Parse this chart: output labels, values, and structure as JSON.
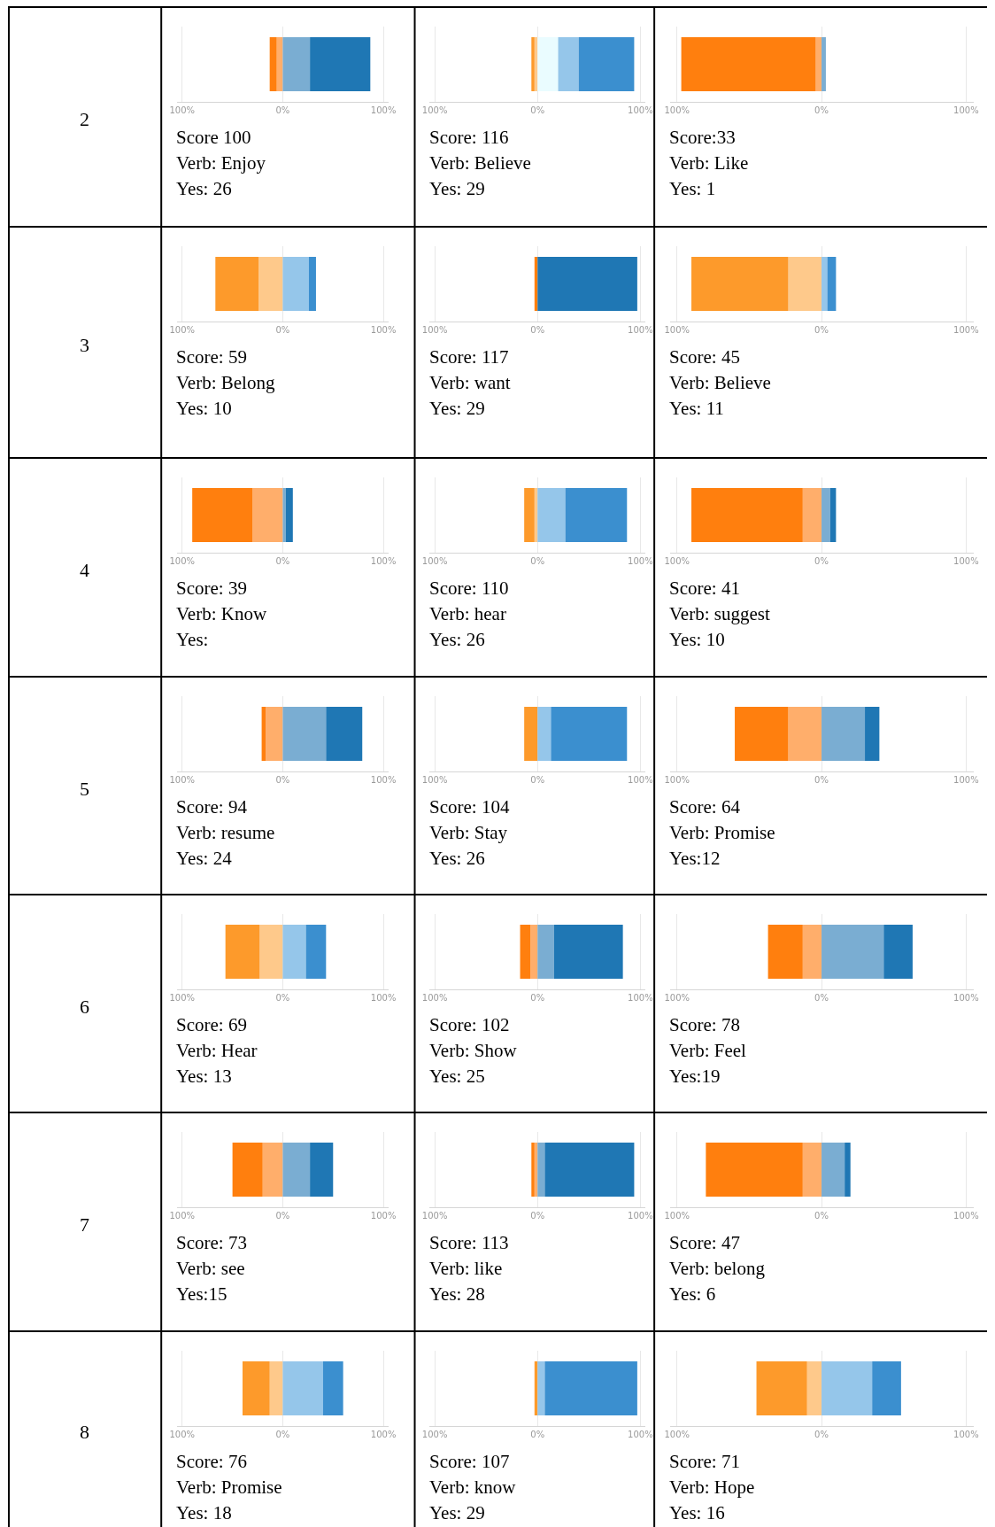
{
  "chart_data": [
    {
      "type": "bar",
      "orientation": "horizontal",
      "stacked": true,
      "categories": [
        null
      ],
      "xlim": [
        -105,
        105
      ],
      "xticks": [
        {
          "value": -100,
          "label": "100%"
        },
        {
          "value": 0,
          "label": "0%"
        },
        {
          "value": 100,
          "label": "100%"
        }
      ],
      "grid": "x",
      "ylabel": "2",
      "annotations": [
        "Score 100",
        "Verb: Enjoy",
        "Yes: 26"
      ],
      "series": [
        {
          "color": "#ffae6b",
          "values": [
            -6
          ]
        },
        {
          "color": "#ff7f0e",
          "values": [
            -7
          ]
        },
        {
          "color": "#7aadd2",
          "values": [
            27
          ]
        },
        {
          "color": "#1f77b4",
          "values": [
            60
          ]
        }
      ]
    },
    {
      "type": "bar",
      "orientation": "horizontal",
      "stacked": true,
      "categories": [
        null
      ],
      "xlim": [
        -105,
        105
      ],
      "xticks": [
        {
          "value": -100,
          "label": "100%"
        },
        {
          "value": 0,
          "label": "0%"
        },
        {
          "value": 100,
          "label": "100%"
        }
      ],
      "grid": "x",
      "annotations": [
        "Score: 116",
        "Verb: Believe",
        "Yes: 29"
      ],
      "series": [
        {
          "color": "#fec98b",
          "values": [
            -3
          ]
        },
        {
          "color": "#fd9a2b",
          "values": [
            -3
          ]
        },
        {
          "color": "#eafcff",
          "values": [
            20
          ]
        },
        {
          "color": "#95c6ea",
          "values": [
            20
          ]
        },
        {
          "color": "#3b8fcf",
          "values": [
            54
          ]
        }
      ]
    },
    {
      "type": "bar",
      "orientation": "horizontal",
      "stacked": true,
      "categories": [
        null
      ],
      "xlim": [
        -105,
        105
      ],
      "xticks": [
        {
          "value": -100,
          "label": "100%"
        },
        {
          "value": 0,
          "label": "0%"
        },
        {
          "value": 100,
          "label": "100%"
        }
      ],
      "grid": "x",
      "annotations": [
        "Score:33",
        "Verb: Like",
        "Yes: 1"
      ],
      "series": [
        {
          "color": "#ffae6b",
          "values": [
            -4
          ]
        },
        {
          "color": "#ff7f0e",
          "values": [
            -93
          ]
        },
        {
          "color": "#7aadd2",
          "values": [
            3
          ]
        }
      ]
    },
    {
      "type": "bar",
      "orientation": "horizontal",
      "stacked": true,
      "categories": [
        null
      ],
      "xlim": [
        -105,
        105
      ],
      "xticks": [
        {
          "value": -100,
          "label": "100%"
        },
        {
          "value": 0,
          "label": "0%"
        },
        {
          "value": 100,
          "label": "100%"
        }
      ],
      "grid": "x",
      "ylabel": "3",
      "annotations": [
        "Score: 59",
        "Verb: Belong",
        "Yes: 10"
      ],
      "series": [
        {
          "color": "#fec98b",
          "values": [
            -24
          ]
        },
        {
          "color": "#fd9a2b",
          "values": [
            -43
          ]
        },
        {
          "color": "#95c6ea",
          "values": [
            26
          ]
        },
        {
          "color": "#3b8fcf",
          "values": [
            7
          ]
        }
      ]
    },
    {
      "type": "bar",
      "orientation": "horizontal",
      "stacked": true,
      "categories": [
        null
      ],
      "xlim": [
        -105,
        105
      ],
      "xticks": [
        {
          "value": -100,
          "label": "100%"
        },
        {
          "value": 0,
          "label": "0%"
        },
        {
          "value": 100,
          "label": "100%"
        }
      ],
      "grid": "x",
      "annotations": [
        "Score: 117",
        "Verb: want",
        "Yes: 29"
      ],
      "series": [
        {
          "color": "#ff7f0e",
          "values": [
            -3
          ]
        },
        {
          "color": "#1f77b4",
          "values": [
            97
          ]
        }
      ]
    },
    {
      "type": "bar",
      "orientation": "horizontal",
      "stacked": true,
      "categories": [
        null
      ],
      "xlim": [
        -105,
        105
      ],
      "xticks": [
        {
          "value": -100,
          "label": "100%"
        },
        {
          "value": 0,
          "label": "0%"
        },
        {
          "value": 100,
          "label": "100%"
        }
      ],
      "grid": "x",
      "annotations": [
        "Score: 45",
        "Verb: Believe",
        "Yes: 11"
      ],
      "series": [
        {
          "color": "#fec98b",
          "values": [
            -23
          ]
        },
        {
          "color": "#fd9a2b",
          "values": [
            -67
          ]
        },
        {
          "color": "#95c6ea",
          "values": [
            4
          ]
        },
        {
          "color": "#3b8fcf",
          "values": [
            6
          ]
        }
      ]
    },
    {
      "type": "bar",
      "orientation": "horizontal",
      "stacked": true,
      "categories": [
        null
      ],
      "xlim": [
        -105,
        105
      ],
      "xticks": [
        {
          "value": -100,
          "label": "100%"
        },
        {
          "value": 0,
          "label": "0%"
        },
        {
          "value": 100,
          "label": "100%"
        }
      ],
      "grid": "x",
      "ylabel": "4",
      "annotations": [
        "Score: 39",
        "Verb: Know",
        "Yes:"
      ],
      "series": [
        {
          "color": "#ffae6b",
          "values": [
            -30
          ]
        },
        {
          "color": "#ff7f0e",
          "values": [
            -60
          ]
        },
        {
          "color": "#7aadd2",
          "values": [
            3
          ]
        },
        {
          "color": "#1f77b4",
          "values": [
            7
          ]
        }
      ]
    },
    {
      "type": "bar",
      "orientation": "horizontal",
      "stacked": true,
      "categories": [
        null
      ],
      "xlim": [
        -105,
        105
      ],
      "xticks": [
        {
          "value": -100,
          "label": "100%"
        },
        {
          "value": 0,
          "label": "0%"
        },
        {
          "value": 100,
          "label": "100%"
        }
      ],
      "grid": "x",
      "annotations": [
        "Score: 110",
        "Verb: hear",
        "Yes: 26"
      ],
      "series": [
        {
          "color": "#fec98b",
          "values": [
            -3
          ]
        },
        {
          "color": "#fd9a2b",
          "values": [
            -10
          ]
        },
        {
          "color": "#95c6ea",
          "values": [
            27
          ]
        },
        {
          "color": "#3b8fcf",
          "values": [
            60
          ]
        }
      ]
    },
    {
      "type": "bar",
      "orientation": "horizontal",
      "stacked": true,
      "categories": [
        null
      ],
      "xlim": [
        -105,
        105
      ],
      "xticks": [
        {
          "value": -100,
          "label": "100%"
        },
        {
          "value": 0,
          "label": "0%"
        },
        {
          "value": 100,
          "label": "100%"
        }
      ],
      "grid": "x",
      "annotations": [
        "Score: 41",
        "Verb: suggest",
        "Yes: 10"
      ],
      "series": [
        {
          "color": "#ffae6b",
          "values": [
            -13
          ]
        },
        {
          "color": "#ff7f0e",
          "values": [
            -77
          ]
        },
        {
          "color": "#7aadd2",
          "values": [
            6
          ]
        },
        {
          "color": "#1f77b4",
          "values": [
            4
          ]
        }
      ]
    },
    {
      "type": "bar",
      "orientation": "horizontal",
      "stacked": true,
      "categories": [
        null
      ],
      "xlim": [
        -105,
        105
      ],
      "xticks": [
        {
          "value": -100,
          "label": "100%"
        },
        {
          "value": 0,
          "label": "0%"
        },
        {
          "value": 100,
          "label": "100%"
        }
      ],
      "grid": "x",
      "ylabel": "5",
      "annotations": [
        "Score: 94",
        "Verb: resume",
        "Yes: 24"
      ],
      "series": [
        {
          "color": "#ffae6b",
          "values": [
            -17
          ]
        },
        {
          "color": "#ff7f0e",
          "values": [
            -4
          ]
        },
        {
          "color": "#7aadd2",
          "values": [
            43
          ]
        },
        {
          "color": "#1f77b4",
          "values": [
            36
          ]
        }
      ]
    },
    {
      "type": "bar",
      "orientation": "horizontal",
      "stacked": true,
      "categories": [
        null
      ],
      "xlim": [
        -105,
        105
      ],
      "xticks": [
        {
          "value": -100,
          "label": "100%"
        },
        {
          "value": 0,
          "label": "0%"
        },
        {
          "value": 100,
          "label": "100%"
        }
      ],
      "grid": "x",
      "annotations": [
        "Score: 104",
        "Verb: Stay",
        "Yes: 26"
      ],
      "series": [
        {
          "color": "#fd9a2b",
          "values": [
            -13
          ]
        },
        {
          "color": "#95c6ea",
          "values": [
            13
          ]
        },
        {
          "color": "#3b8fcf",
          "values": [
            74
          ]
        }
      ]
    },
    {
      "type": "bar",
      "orientation": "horizontal",
      "stacked": true,
      "categories": [
        null
      ],
      "xlim": [
        -105,
        105
      ],
      "xticks": [
        {
          "value": -100,
          "label": "100%"
        },
        {
          "value": 0,
          "label": "0%"
        },
        {
          "value": 100,
          "label": "100%"
        }
      ],
      "grid": "x",
      "annotations": [
        "Score: 64",
        "Verb: Promise",
        "Yes:12"
      ],
      "series": [
        {
          "color": "#ffae6b",
          "values": [
            -23
          ]
        },
        {
          "color": "#ff7f0e",
          "values": [
            -37
          ]
        },
        {
          "color": "#7aadd2",
          "values": [
            30
          ]
        },
        {
          "color": "#1f77b4",
          "values": [
            10
          ]
        }
      ]
    },
    {
      "type": "bar",
      "orientation": "horizontal",
      "stacked": true,
      "categories": [
        null
      ],
      "xlim": [
        -105,
        105
      ],
      "xticks": [
        {
          "value": -100,
          "label": "100%"
        },
        {
          "value": 0,
          "label": "0%"
        },
        {
          "value": 100,
          "label": "100%"
        }
      ],
      "grid": "x",
      "ylabel": "6",
      "annotations": [
        "Score: 69",
        "Verb: Hear",
        "Yes: 13"
      ],
      "series": [
        {
          "color": "#fec98b",
          "values": [
            -23
          ]
        },
        {
          "color": "#fd9a2b",
          "values": [
            -34
          ]
        },
        {
          "color": "#95c6ea",
          "values": [
            23
          ]
        },
        {
          "color": "#3b8fcf",
          "values": [
            20
          ]
        }
      ]
    },
    {
      "type": "bar",
      "orientation": "horizontal",
      "stacked": true,
      "categories": [
        null
      ],
      "xlim": [
        -105,
        105
      ],
      "xticks": [
        {
          "value": -100,
          "label": "100%"
        },
        {
          "value": 0,
          "label": "0%"
        },
        {
          "value": 100,
          "label": "100%"
        }
      ],
      "grid": "x",
      "annotations": [
        "Score: 102",
        "Verb: Show",
        "Yes: 25"
      ],
      "series": [
        {
          "color": "#ffae6b",
          "values": [
            -7
          ]
        },
        {
          "color": "#ff7f0e",
          "values": [
            -10
          ]
        },
        {
          "color": "#7aadd2",
          "values": [
            16
          ]
        },
        {
          "color": "#1f77b4",
          "values": [
            67
          ]
        }
      ]
    },
    {
      "type": "bar",
      "orientation": "horizontal",
      "stacked": true,
      "categories": [
        null
      ],
      "xlim": [
        -105,
        105
      ],
      "xticks": [
        {
          "value": -100,
          "label": "100%"
        },
        {
          "value": 0,
          "label": "0%"
        },
        {
          "value": 100,
          "label": "100%"
        }
      ],
      "grid": "x",
      "annotations": [
        "Score: 78",
        "Verb: Feel",
        "Yes:19"
      ],
      "series": [
        {
          "color": "#ffae6b",
          "values": [
            -13
          ]
        },
        {
          "color": "#ff7f0e",
          "values": [
            -24
          ]
        },
        {
          "color": "#7aadd2",
          "values": [
            43
          ]
        },
        {
          "color": "#1f77b4",
          "values": [
            20
          ]
        }
      ]
    },
    {
      "type": "bar",
      "orientation": "horizontal",
      "stacked": true,
      "categories": [
        null
      ],
      "xlim": [
        -105,
        105
      ],
      "xticks": [
        {
          "value": -100,
          "label": "100%"
        },
        {
          "value": 0,
          "label": "0%"
        },
        {
          "value": 100,
          "label": "100%"
        }
      ],
      "grid": "x",
      "ylabel": "7",
      "annotations": [
        "Score: 73",
        "Verb: see",
        "Yes:15"
      ],
      "series": [
        {
          "color": "#ffae6b",
          "values": [
            -20
          ]
        },
        {
          "color": "#ff7f0e",
          "values": [
            -30
          ]
        },
        {
          "color": "#7aadd2",
          "values": [
            27
          ]
        },
        {
          "color": "#1f77b4",
          "values": [
            23
          ]
        }
      ]
    },
    {
      "type": "bar",
      "orientation": "horizontal",
      "stacked": true,
      "categories": [
        null
      ],
      "xlim": [
        -105,
        105
      ],
      "xticks": [
        {
          "value": -100,
          "label": "100%"
        },
        {
          "value": 0,
          "label": "0%"
        },
        {
          "value": 100,
          "label": "100%"
        }
      ],
      "grid": "x",
      "annotations": [
        "Score: 113",
        "Verb: like",
        "Yes: 28"
      ],
      "series": [
        {
          "color": "#ffae6b",
          "values": [
            -3
          ]
        },
        {
          "color": "#ff7f0e",
          "values": [
            -3
          ]
        },
        {
          "color": "#7aadd2",
          "values": [
            7
          ]
        },
        {
          "color": "#1f77b4",
          "values": [
            87
          ]
        }
      ]
    },
    {
      "type": "bar",
      "orientation": "horizontal",
      "stacked": true,
      "categories": [
        null
      ],
      "xlim": [
        -105,
        105
      ],
      "xticks": [
        {
          "value": -100,
          "label": "100%"
        },
        {
          "value": 0,
          "label": "0%"
        },
        {
          "value": 100,
          "label": "100%"
        }
      ],
      "grid": "x",
      "annotations": [
        "Score: 47",
        "Verb: belong",
        "Yes: 6"
      ],
      "series": [
        {
          "color": "#ffae6b",
          "values": [
            -13
          ]
        },
        {
          "color": "#ff7f0e",
          "values": [
            -67
          ]
        },
        {
          "color": "#7aadd2",
          "values": [
            16
          ]
        },
        {
          "color": "#1f77b4",
          "values": [
            4
          ]
        }
      ]
    },
    {
      "type": "bar",
      "orientation": "horizontal",
      "stacked": true,
      "categories": [
        null
      ],
      "xlim": [
        -105,
        105
      ],
      "xticks": [
        {
          "value": -100,
          "label": "100%"
        },
        {
          "value": 0,
          "label": "0%"
        },
        {
          "value": 100,
          "label": "100%"
        }
      ],
      "grid": "x",
      "ylabel": "8",
      "annotations": [
        "Score: 76",
        "Verb: Promise",
        "Yes: 18"
      ],
      "series": [
        {
          "color": "#fec98b",
          "values": [
            -13
          ]
        },
        {
          "color": "#fd9a2b",
          "values": [
            -27
          ]
        },
        {
          "color": "#95c6ea",
          "values": [
            40
          ]
        },
        {
          "color": "#3b8fcf",
          "values": [
            20
          ]
        }
      ]
    },
    {
      "type": "bar",
      "orientation": "horizontal",
      "stacked": true,
      "categories": [
        null
      ],
      "xlim": [
        -105,
        105
      ],
      "xticks": [
        {
          "value": -100,
          "label": "100%"
        },
        {
          "value": 0,
          "label": "0%"
        },
        {
          "value": 100,
          "label": "100%"
        }
      ],
      "grid": "x",
      "annotations": [
        "Score: 107",
        "Verb: know",
        "Yes: 29"
      ],
      "series": [
        {
          "color": "#fd9a2b",
          "values": [
            -3
          ]
        },
        {
          "color": "#95c6ea",
          "values": [
            7
          ]
        },
        {
          "color": "#3b8fcf",
          "values": [
            90
          ]
        }
      ]
    },
    {
      "type": "bar",
      "orientation": "horizontal",
      "stacked": true,
      "categories": [
        null
      ],
      "xlim": [
        -105,
        105
      ],
      "xticks": [
        {
          "value": -100,
          "label": "100%"
        },
        {
          "value": 0,
          "label": "0%"
        },
        {
          "value": 100,
          "label": "100%"
        }
      ],
      "grid": "x",
      "annotations": [
        "Score: 71",
        "Verb: Hope",
        "Yes: 16"
      ],
      "series": [
        {
          "color": "#fec98b",
          "values": [
            -10
          ]
        },
        {
          "color": "#fd9a2b",
          "values": [
            -35
          ]
        },
        {
          "color": "#95c6ea",
          "values": [
            35
          ]
        },
        {
          "color": "#3b8fcf",
          "values": [
            20
          ]
        }
      ]
    }
  ]
}
